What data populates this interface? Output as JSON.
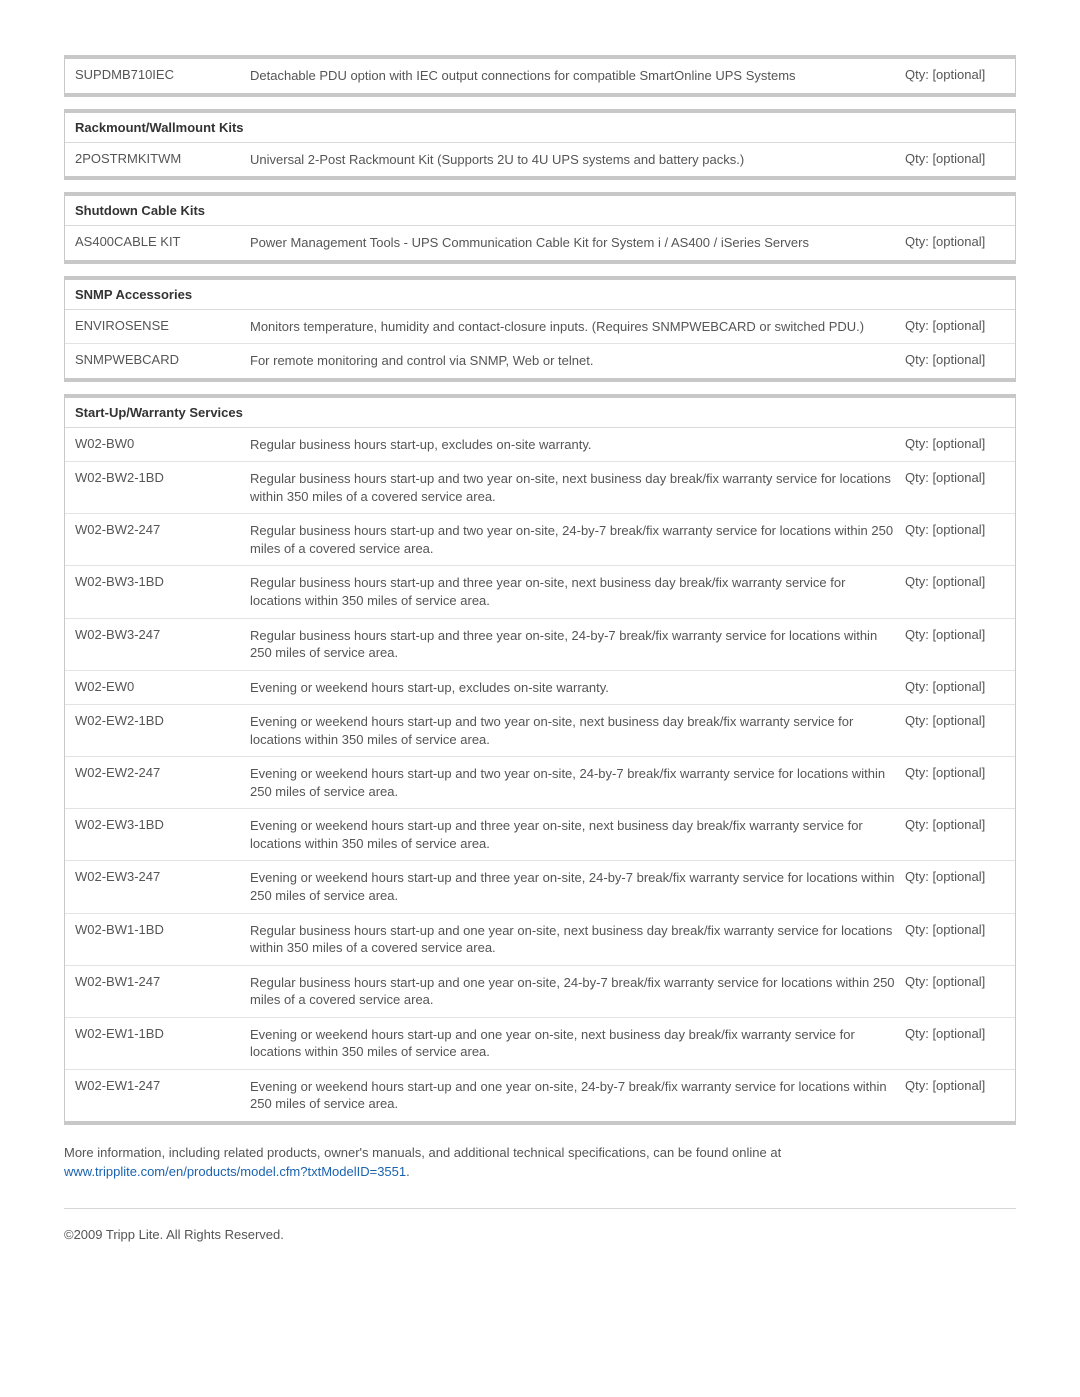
{
  "qty_label": "Qty: [optional]",
  "orphan": {
    "rows": [
      {
        "code": "SUPDMB710IEC",
        "desc": "Detachable PDU option with IEC output connections for compatible SmartOnline UPS Systems"
      }
    ]
  },
  "sections": [
    {
      "title": "Rackmount/Wallmount Kits",
      "rows": [
        {
          "code": "2POSTRMKITWM",
          "desc": "Universal 2-Post Rackmount Kit (Supports 2U to 4U UPS systems and battery packs.)"
        }
      ]
    },
    {
      "title": "Shutdown Cable Kits",
      "rows": [
        {
          "code": "AS400CABLE KIT",
          "desc": "Power Management Tools - UPS Communication Cable Kit for System i / AS400 / iSeries Servers"
        }
      ]
    },
    {
      "title": "SNMP Accessories",
      "rows": [
        {
          "code": "ENVIROSENSE",
          "desc": "Monitors temperature, humidity and contact-closure inputs. (Requires SNMPWEBCARD or switched PDU.)"
        },
        {
          "code": "SNMPWEBCARD",
          "desc": "For remote monitoring and control via SNMP, Web or telnet."
        }
      ]
    },
    {
      "title": "Start-Up/Warranty Services",
      "rows": [
        {
          "code": "W02-BW0",
          "desc": "Regular business hours start-up, excludes on-site warranty."
        },
        {
          "code": "W02-BW2-1BD",
          "desc": "Regular business hours start-up and two year on-site, next business day break/fix warranty service for locations within 350 miles of a covered service area."
        },
        {
          "code": "W02-BW2-247",
          "desc": "Regular business hours start-up and two year on-site, 24-by-7 break/fix warranty service for locations within 250 miles of a covered service area."
        },
        {
          "code": "W02-BW3-1BD",
          "desc": "Regular business hours start-up and three year on-site, next business day break/fix warranty service for locations within 350 miles of service area."
        },
        {
          "code": "W02-BW3-247",
          "desc": "Regular business hours start-up and three year on-site, 24-by-7 break/fix warranty service for locations within 250 miles of service area."
        },
        {
          "code": "W02-EW0",
          "desc": "Evening or weekend hours start-up, excludes on-site warranty."
        },
        {
          "code": "W02-EW2-1BD",
          "desc": "Evening or weekend hours start-up and two year on-site, next business day break/fix warranty service for locations within 350 miles of service area."
        },
        {
          "code": "W02-EW2-247",
          "desc": "Evening or weekend hours start-up and two year on-site, 24-by-7 break/fix warranty service for locations within 250 miles of service area."
        },
        {
          "code": "W02-EW3-1BD",
          "desc": "Evening or weekend hours start-up and three year on-site, next business day break/fix warranty service for locations within 350 miles of service area."
        },
        {
          "code": "W02-EW3-247",
          "desc": "Evening or weekend hours start-up and three year on-site, 24-by-7 break/fix warranty service for locations within 250 miles of service area."
        },
        {
          "code": "W02-BW1-1BD",
          "desc": "Regular business hours start-up and one year on-site, next business day break/fix warranty service for locations within 350 miles of a covered service area."
        },
        {
          "code": "W02-BW1-247",
          "desc": "Regular business hours start-up and one year on-site, 24-by-7 break/fix warranty service for locations within 250 miles of a covered service area."
        },
        {
          "code": "W02-EW1-1BD",
          "desc": "Evening or weekend hours start-up and one year on-site, next business day break/fix warranty service for locations within 350 miles of service area."
        },
        {
          "code": "W02-EW1-247",
          "desc": "Evening or weekend hours start-up and one year on-site, 24-by-7 break/fix warranty service for locations within 250 miles of service area."
        }
      ]
    }
  ],
  "more_info_lead": "More information, including related products, owner's manuals, and additional technical specifications, can be found online at ",
  "more_info_link": "www.tripplite.com/en/products/model.cfm?txtModelID=3551",
  "more_info_tail": ".",
  "copyright": "©2009 Tripp Lite.  All Rights Reserved."
}
